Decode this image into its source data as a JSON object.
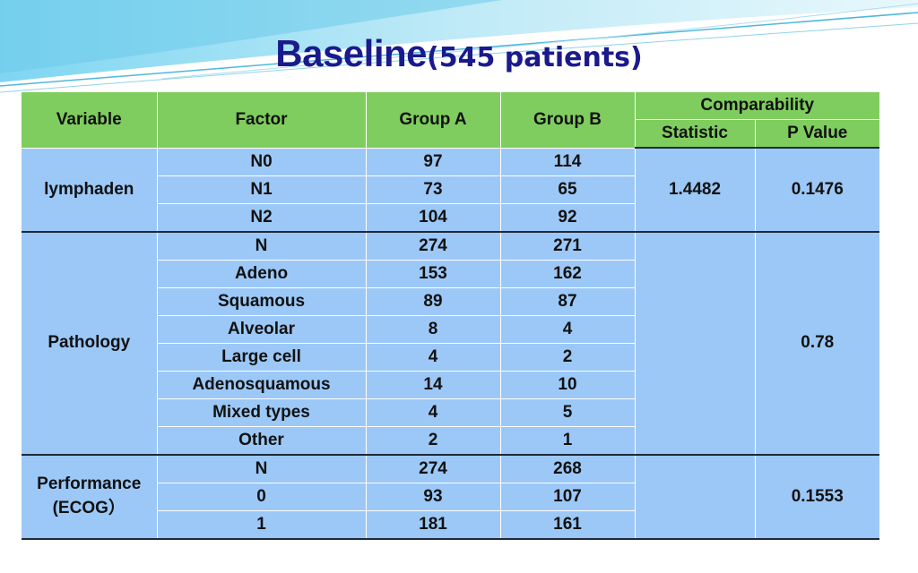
{
  "title": {
    "main": "Baseline",
    "sub": "(545 patients)"
  },
  "header": {
    "variable": "Variable",
    "factor": "Factor",
    "group_a": "Group A",
    "group_b": "Group B",
    "comparability": "Comparability",
    "statistic": "Statistic",
    "p_value": "P Value"
  },
  "colors": {
    "header_bg": "#7fcd5e",
    "body_bg": "#9cc8f7",
    "title": "#1a1a8c"
  },
  "groups": [
    {
      "variable": "lymphaden",
      "statistic": "1.4482",
      "p_value": "0.1476",
      "rows": [
        {
          "factor": "N0",
          "group_a": "97",
          "group_b": "114"
        },
        {
          "factor": "N1",
          "group_a": "73",
          "group_b": "65"
        },
        {
          "factor": "N2",
          "group_a": "104",
          "group_b": "92"
        }
      ]
    },
    {
      "variable": "Pathology",
      "statistic": "",
      "p_value": "0.78",
      "rows": [
        {
          "factor": "N",
          "group_a": "274",
          "group_b": "271"
        },
        {
          "factor": "Adeno",
          "group_a": "153",
          "group_b": "162"
        },
        {
          "factor": "Squamous",
          "group_a": "89",
          "group_b": "87"
        },
        {
          "factor": "Alveolar",
          "group_a": "8",
          "group_b": "4"
        },
        {
          "factor": "Large cell",
          "group_a": "4",
          "group_b": "2"
        },
        {
          "factor": "Adenosquamous",
          "group_a": "14",
          "group_b": "10"
        },
        {
          "factor": "Mixed types",
          "group_a": "4",
          "group_b": "5"
        },
        {
          "factor": "Other",
          "group_a": "2",
          "group_b": "1"
        }
      ]
    },
    {
      "variable_line1": "Performance",
      "variable_line2": "(ECOG）",
      "statistic": "",
      "p_value": "0.1553",
      "rows": [
        {
          "factor": "N",
          "group_a": "274",
          "group_b": "268"
        },
        {
          "factor": "0",
          "group_a": "93",
          "group_b": "107"
        },
        {
          "factor": "1",
          "group_a": "181",
          "group_b": "161"
        }
      ]
    }
  ]
}
